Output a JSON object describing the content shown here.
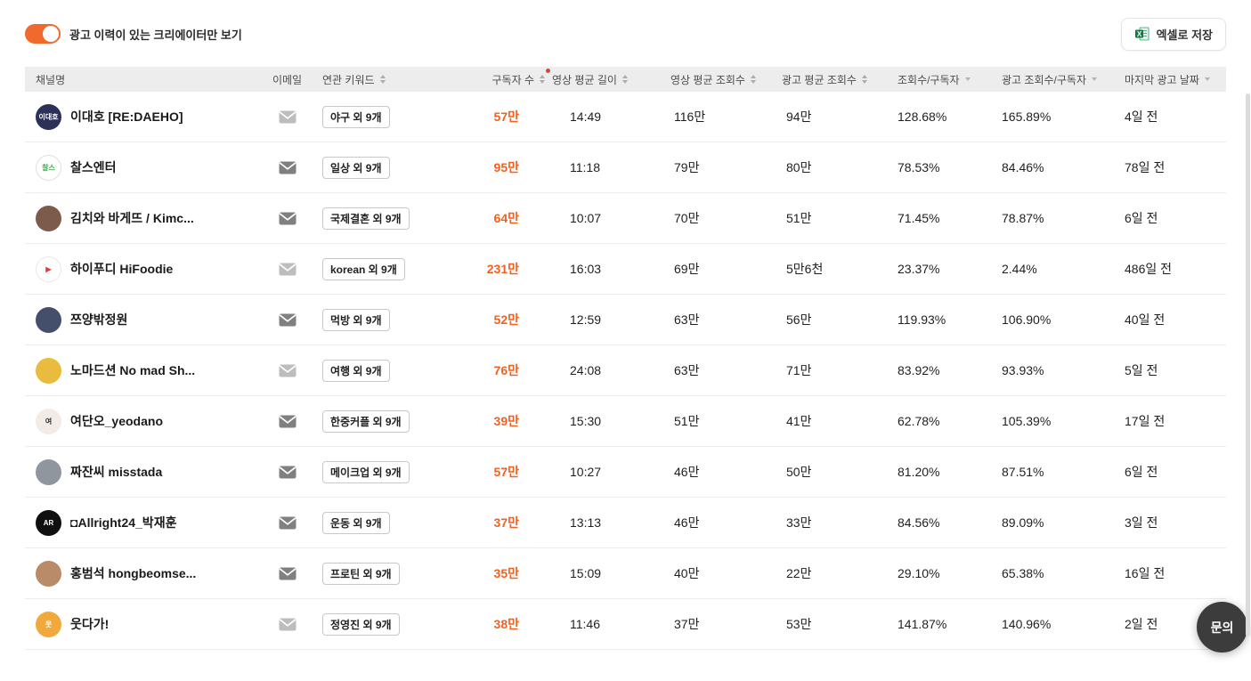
{
  "toolbar": {
    "toggle_label": "광고 이력이 있는 크리에이터만 보기",
    "toggle_on": true,
    "export_button": "엑셀로 저장"
  },
  "colors": {
    "accent_orange": "#F5601E",
    "toggle_orange": "#EF6A2C",
    "header_bg": "#EDEDED",
    "badge_red": "#E8402F",
    "excel_green": "#107C41",
    "fab_bg": "#3C3C3C"
  },
  "table": {
    "columns": [
      {
        "label": "채널명",
        "sort": "none"
      },
      {
        "label": "이메일",
        "sort": "none"
      },
      {
        "label": "연관 키워드",
        "sort": "updown"
      },
      {
        "label": "구독자 수",
        "sort": "updown"
      },
      {
        "label": "영상 평균 길이",
        "sort": "updown",
        "badge": true
      },
      {
        "label": "영상 평균 조회수",
        "sort": "updown"
      },
      {
        "label": "광고 평균 조회수",
        "sort": "updown"
      },
      {
        "label": "조회수/구독자",
        "sort": "down"
      },
      {
        "label": "광고 조회수/구독자",
        "sort": "down"
      },
      {
        "label": "마지막 광고 날짜",
        "sort": "down"
      }
    ],
    "rows": [
      {
        "name": "이대호 [RE:DAEHO]",
        "email_muted": true,
        "keywords": "야구 외 9개",
        "subscribers": "57만",
        "avg_length": "14:49",
        "avg_views": "116만",
        "avg_ad_views": "94만",
        "views_per_sub": "128.68%",
        "ad_views_per_sub": "165.89%",
        "last_ad_date": "4일 전",
        "avatar": {
          "bg": "#2C3157",
          "fg": "#FFFFFF",
          "label": "이대호"
        }
      },
      {
        "name": "찰스엔터",
        "email_muted": false,
        "keywords": "일상 외 9개",
        "subscribers": "95만",
        "avg_length": "11:18",
        "avg_views": "79만",
        "avg_ad_views": "80만",
        "views_per_sub": "78.53%",
        "ad_views_per_sub": "84.46%",
        "last_ad_date": "78일 전",
        "avatar": {
          "bg": "#FFFFFF",
          "fg": "#3FAE4A",
          "label": "찰스",
          "border": "#E0E0E0"
        }
      },
      {
        "name": "김치와 바게뜨 / Kimc...",
        "email_muted": false,
        "keywords": "국제결혼 외 9개",
        "subscribers": "64만",
        "avg_length": "10:07",
        "avg_views": "70만",
        "avg_ad_views": "51만",
        "views_per_sub": "71.45%",
        "ad_views_per_sub": "78.87%",
        "last_ad_date": "6일 전",
        "avatar": {
          "bg": "#7D5B4A",
          "fg": "#F2D8C4",
          "label": ""
        }
      },
      {
        "name": "하이푸디 HiFoodie",
        "email_muted": true,
        "keywords": "korean 외 9개",
        "subscribers": "231만",
        "avg_length": "16:03",
        "avg_views": "69만",
        "avg_ad_views": "5만6천",
        "views_per_sub": "23.37%",
        "ad_views_per_sub": "2.44%",
        "last_ad_date": "486일 전",
        "avatar": {
          "bg": "#FFFFFF",
          "fg": "#E53935",
          "label": "▶",
          "border": "#E8E8E8"
        }
      },
      {
        "name": "쯔양밖정원",
        "email_muted": false,
        "keywords": "먹방 외 9개",
        "subscribers": "52만",
        "avg_length": "12:59",
        "avg_views": "63만",
        "avg_ad_views": "56만",
        "views_per_sub": "119.93%",
        "ad_views_per_sub": "106.90%",
        "last_ad_date": "40일 전",
        "avatar": {
          "bg": "#44506B",
          "fg": "#DFE4EE",
          "label": ""
        }
      },
      {
        "name": "노마드션 No mad Sh...",
        "email_muted": true,
        "keywords": "여행 외 9개",
        "subscribers": "76만",
        "avg_length": "24:08",
        "avg_views": "63만",
        "avg_ad_views": "71만",
        "views_per_sub": "83.92%",
        "ad_views_per_sub": "93.93%",
        "last_ad_date": "5일 전",
        "avatar": {
          "bg": "#E9BC3F",
          "fg": "#41502C",
          "label": ""
        }
      },
      {
        "name": "여단오_yeodano",
        "email_muted": false,
        "keywords": "한중커플 외 9개",
        "subscribers": "39만",
        "avg_length": "15:30",
        "avg_views": "51만",
        "avg_ad_views": "41만",
        "views_per_sub": "62.78%",
        "ad_views_per_sub": "105.39%",
        "last_ad_date": "17일 전",
        "avatar": {
          "bg": "#F3ECE6",
          "fg": "#2B2B2B",
          "label": "여"
        }
      },
      {
        "name": "짜잔씨 misstada",
        "email_muted": false,
        "keywords": "메이크업 외 9개",
        "subscribers": "57만",
        "avg_length": "10:27",
        "avg_views": "46만",
        "avg_ad_views": "50만",
        "views_per_sub": "81.20%",
        "ad_views_per_sub": "87.51%",
        "last_ad_date": "6일 전",
        "avatar": {
          "bg": "#8F969E",
          "fg": "#FFFFFF",
          "label": ""
        }
      },
      {
        "name": "◘Allright24_박재훈",
        "email_muted": false,
        "keywords": "운동 외 9개",
        "subscribers": "37만",
        "avg_length": "13:13",
        "avg_views": "46만",
        "avg_ad_views": "33만",
        "views_per_sub": "84.56%",
        "ad_views_per_sub": "89.09%",
        "last_ad_date": "3일 전",
        "avatar": {
          "bg": "#101010",
          "fg": "#FFFFFF",
          "label": "AR"
        }
      },
      {
        "name": "홍범석 hongbeomse...",
        "email_muted": false,
        "keywords": "프로틴 외 9개",
        "subscribers": "35만",
        "avg_length": "15:09",
        "avg_views": "40만",
        "avg_ad_views": "22만",
        "views_per_sub": "29.10%",
        "ad_views_per_sub": "65.38%",
        "last_ad_date": "16일 전",
        "avatar": {
          "bg": "#B98B68",
          "fg": "#5E3C26",
          "label": ""
        }
      },
      {
        "name": "웃다가!",
        "email_muted": true,
        "keywords": "정영진 외 9개",
        "subscribers": "38만",
        "avg_length": "11:46",
        "avg_views": "37만",
        "avg_ad_views": "53만",
        "views_per_sub": "141.87%",
        "ad_views_per_sub": "140.96%",
        "last_ad_date": "2일 전",
        "avatar": {
          "bg": "#F2A93B",
          "fg": "#FFFFFF",
          "label": "웃"
        }
      }
    ]
  },
  "fab": {
    "label": "문의"
  }
}
